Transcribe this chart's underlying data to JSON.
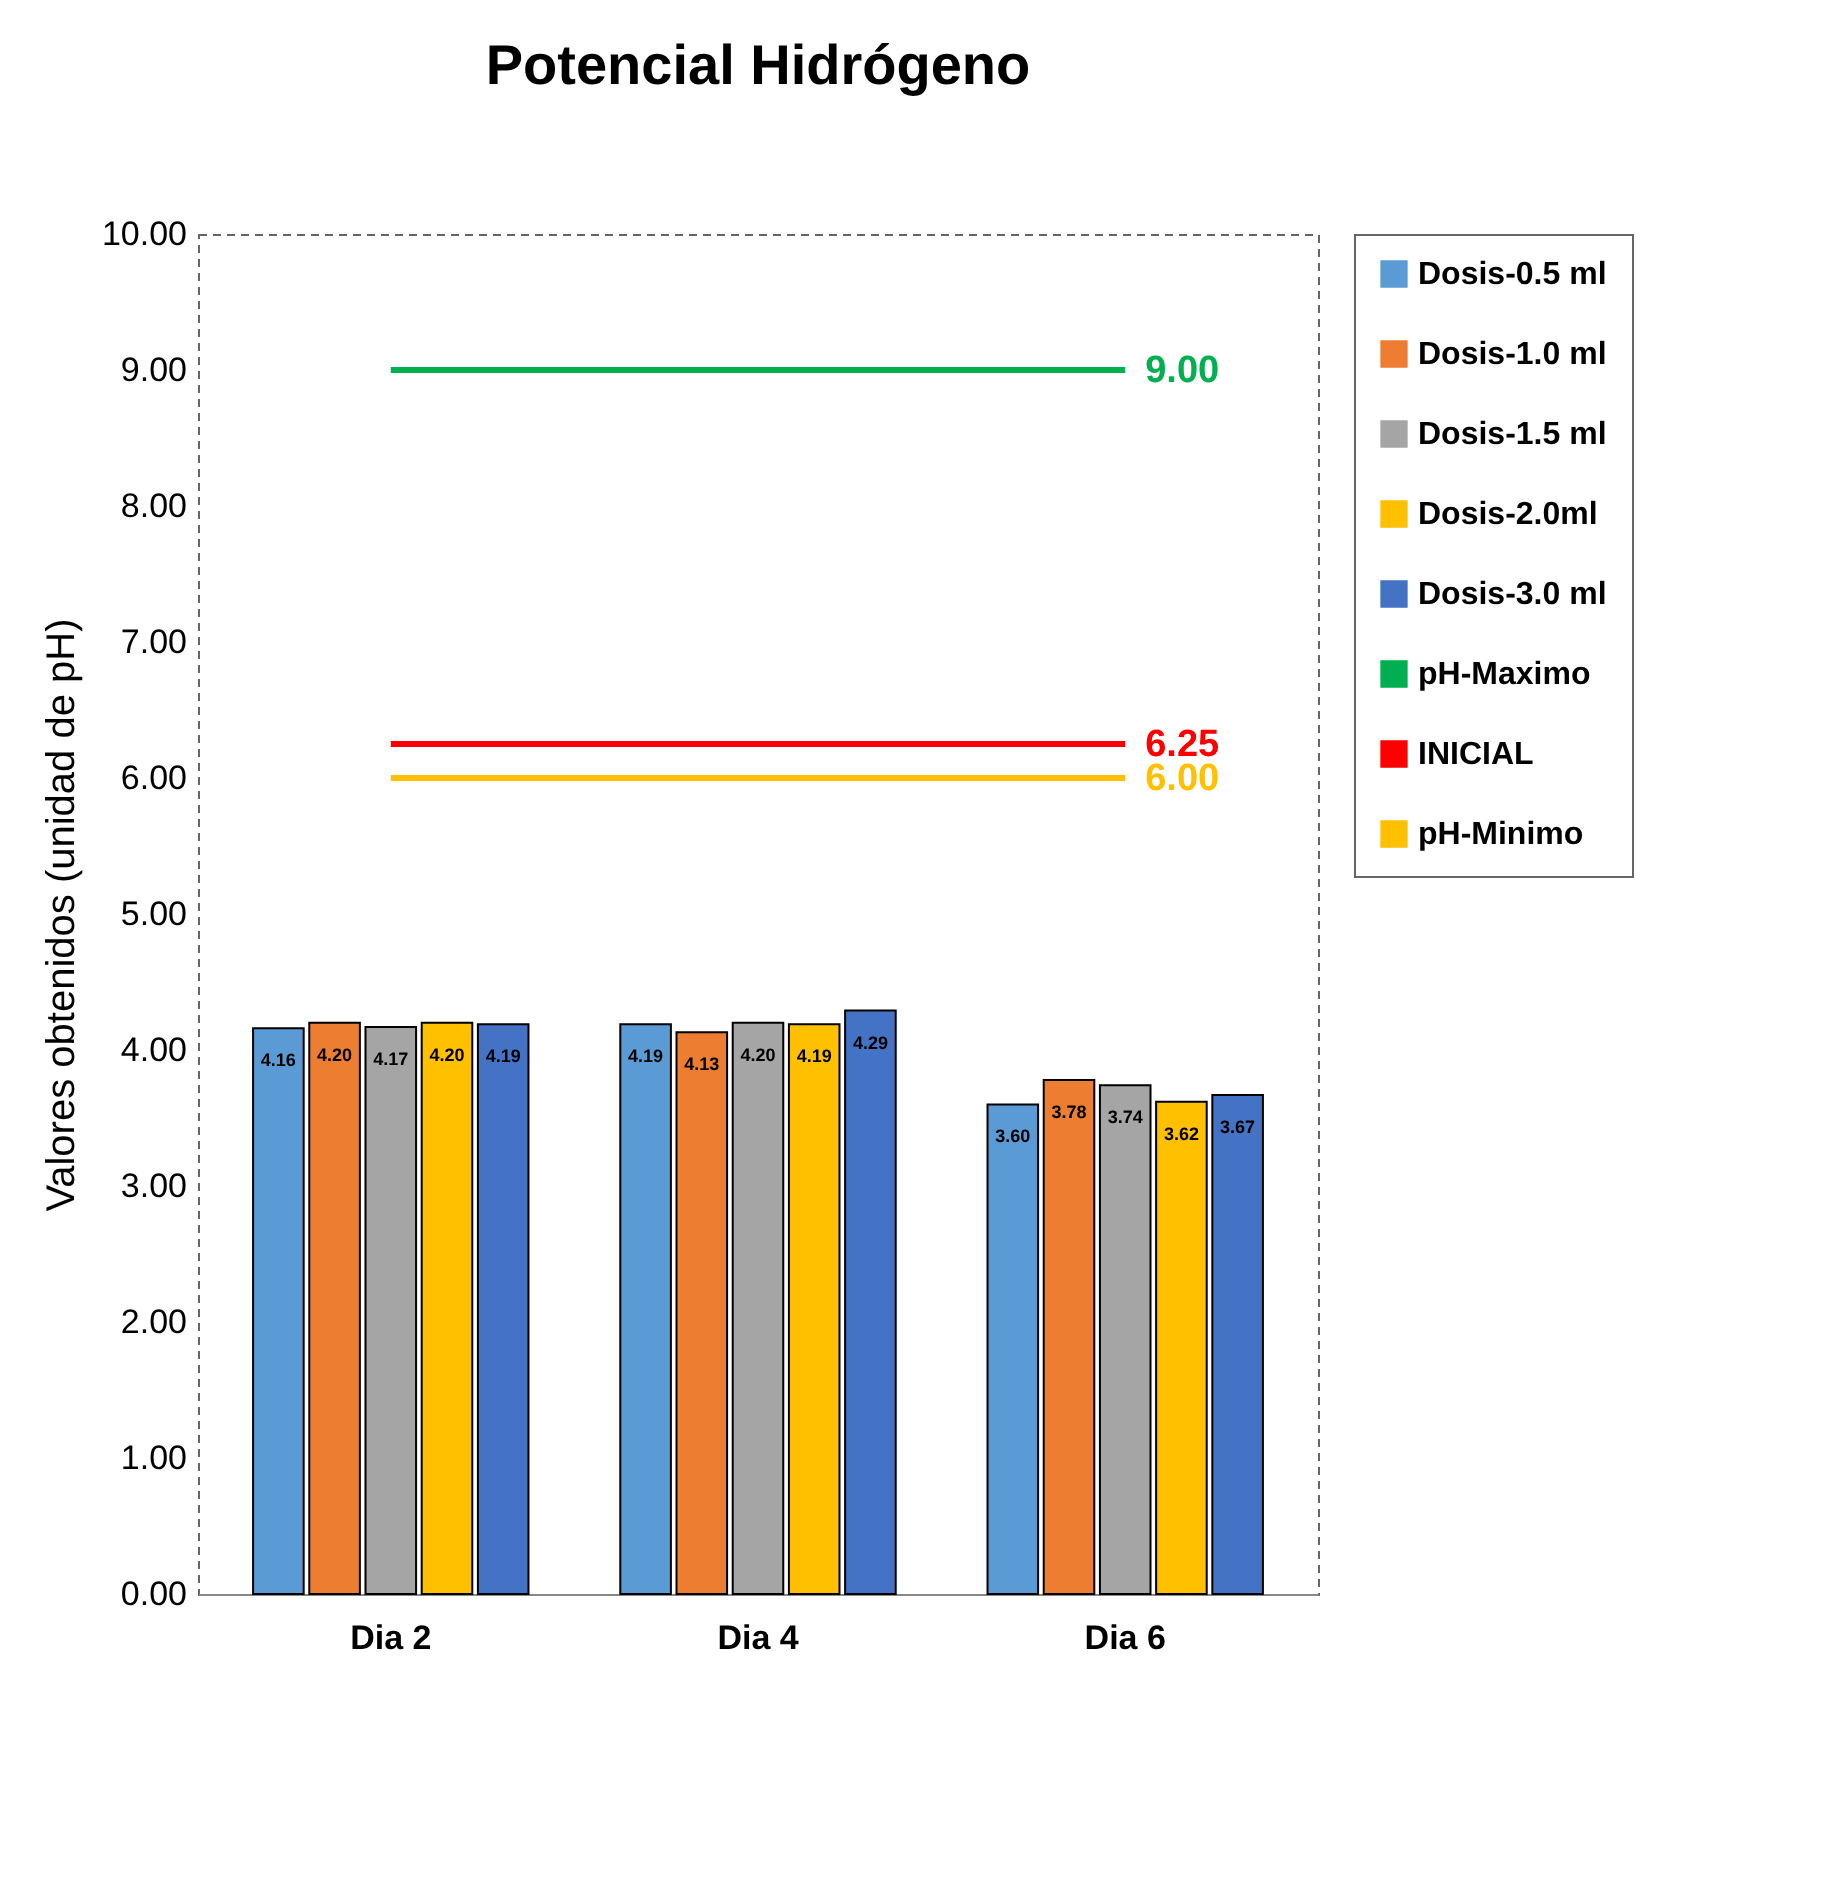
{
  "chart_data": {
    "type": "bar",
    "title": "Potencial Hidrógeno",
    "ylabel": "Valores obtenidos (unidad de pH)",
    "categories": [
      "Dia 2",
      "Dia 4",
      "Dia 6"
    ],
    "ylim": [
      0,
      10
    ],
    "yticks": [
      {
        "value": 0,
        "label": "0.00"
      },
      {
        "value": 1,
        "label": "1.00"
      },
      {
        "value": 2,
        "label": "2.00"
      },
      {
        "value": 3,
        "label": "3.00"
      },
      {
        "value": 4,
        "label": "4.00"
      },
      {
        "value": 5,
        "label": "5.00"
      },
      {
        "value": 6,
        "label": "6.00"
      },
      {
        "value": 7,
        "label": "7.00"
      },
      {
        "value": 8,
        "label": "8.00"
      },
      {
        "value": 9,
        "label": "9.00"
      },
      {
        "value": 10,
        "label": "10.00"
      }
    ],
    "legend": "right",
    "series": [
      {
        "name": "Dosis-0.5 ml",
        "color": "#5b9bd5",
        "values": [
          4.16,
          4.19,
          3.6
        ],
        "value_labels": [
          "4.16",
          "4.19",
          "3.60"
        ]
      },
      {
        "name": "Dosis-1.0 ml",
        "color": "#ed7d31",
        "values": [
          4.2,
          4.13,
          3.78
        ],
        "value_labels": [
          "4.20",
          "4.13",
          "3.78"
        ]
      },
      {
        "name": "Dosis-1.5 ml",
        "color": "#a5a5a5",
        "values": [
          4.17,
          4.2,
          3.74
        ],
        "value_labels": [
          "4.17",
          "4.20",
          "3.74"
        ]
      },
      {
        "name": "Dosis-2.0ml",
        "color": "#ffc000",
        "values": [
          4.2,
          4.19,
          3.62
        ],
        "value_labels": [
          "4.20",
          "4.19",
          "3.62"
        ]
      },
      {
        "name": "Dosis-3.0 ml",
        "color": "#4472c4",
        "values": [
          4.19,
          4.29,
          3.67
        ],
        "value_labels": [
          "4.19",
          "4.29",
          "3.67"
        ]
      },
      {
        "name": "pH-Maximo",
        "type": "line",
        "color": "#00b050",
        "values": [
          9.0,
          9.0,
          9.0
        ],
        "value_labels": [
          null,
          null,
          "9.00"
        ]
      },
      {
        "name": "INICIAL",
        "type": "line",
        "color": "#ff0000",
        "values": [
          6.25,
          6.25,
          6.25
        ],
        "value_labels": [
          null,
          null,
          "6.25"
        ]
      },
      {
        "name": "pH-Minimo",
        "type": "line",
        "color": "#ffc000",
        "values": [
          6.0,
          6.0,
          6.0
        ],
        "value_labels": [
          null,
          null,
          "6.00"
        ]
      }
    ]
  }
}
